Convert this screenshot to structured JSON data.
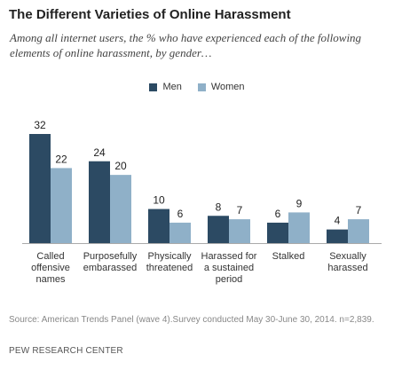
{
  "chart_data": {
    "type": "bar",
    "title": "The Different Varieties of Online Harassment",
    "subtitle": "Among all internet users, the % who have experienced each of the following elements of online harassment, by gender…",
    "categories": [
      [
        "Called",
        "offensive",
        "names"
      ],
      [
        "Purposefully",
        "embarassed"
      ],
      [
        "Physically",
        "threatened"
      ],
      [
        "Harassed for",
        "a sustained",
        "period"
      ],
      [
        "Stalked"
      ],
      [
        "Sexually",
        "harassed"
      ]
    ],
    "series": [
      {
        "name": "Men",
        "color": "#2c4a63",
        "values": [
          32,
          24,
          10,
          8,
          6,
          4
        ]
      },
      {
        "name": "Women",
        "color": "#8fb0c8",
        "values": [
          22,
          20,
          6,
          7,
          9,
          7
        ]
      }
    ],
    "ylim": [
      0,
      32
    ],
    "grid": false,
    "legend_position": "top-center"
  },
  "footer": {
    "source": "Source: American Trends Panel (wave 4).Survey conducted May 30-June 30, 2014. n=2,839.",
    "org": "PEW RESEARCH CENTER"
  }
}
